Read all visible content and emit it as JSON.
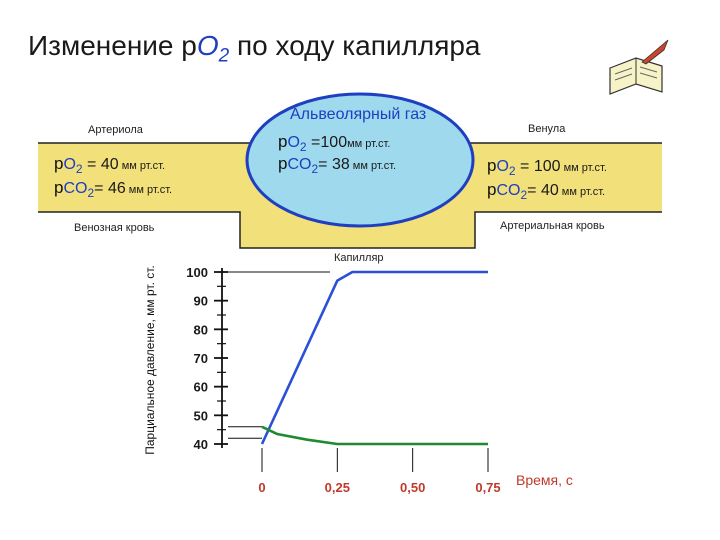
{
  "title": {
    "prefix": "Изменение р",
    "o": "O",
    "sub": "2",
    "suffix": " по ходу капилляра"
  },
  "labels": {
    "arteriole": "Артериола",
    "venule": "Венула",
    "venous_blood": "Венозная кровь",
    "arterial_blood": "Артериальная кровь",
    "alveolar_gas": "Альвеолярный газ",
    "capillary": "Капилляр",
    "y_axis": "Парциальное давление, мм рт. ст.",
    "time": "Время, с"
  },
  "left_values": {
    "po2_prefix": "p",
    "o": "O",
    "o_sub": "2",
    "po2_eq": " = ",
    "po2_value": "40",
    "po2_unit": " мм рт.ст.",
    "pco2_prefix": "p",
    "co": "CO",
    "co_sub": "2",
    "pco2_eq": "= ",
    "pco2_value": "46",
    "pco2_unit": " мм рт.ст."
  },
  "alveolar_values": {
    "po2_prefix": "p",
    "o": "O",
    "o_sub": "2",
    "po2_eq": " =",
    "po2_value": "100",
    "po2_unit": "мм рт.ст.",
    "pco2_prefix": "p",
    "co": "CO",
    "co_sub": "2",
    "pco2_eq": "= ",
    "pco2_value": "38",
    "pco2_unit": " мм рт.ст."
  },
  "right_values": {
    "po2_prefix": "p",
    "o": "O",
    "o_sub": "2",
    "po2_eq": " = ",
    "po2_value": "100",
    "po2_unit": " мм рт.ст.",
    "pco2_prefix": "p",
    "co": "CO",
    "co_sub": "2",
    "pco2_eq": "= ",
    "pco2_value": "40",
    "pco2_unit": " мм рт.ст."
  },
  "colors": {
    "vessel": "#f2e07a",
    "alveolus_fill": "#9fd9ee",
    "alveolus_stroke": "#1e3fbf",
    "o2_line": "#2a4fd8",
    "co2_line": "#1f8a2e",
    "time_ticks": "#c0392b"
  },
  "icon": "open-book-with-quill-icon",
  "chart_data": {
    "type": "line",
    "x_ticks": [
      "0",
      "0,25",
      "0,50",
      "0,75"
    ],
    "y_ticks": [
      "40",
      "50",
      "60",
      "70",
      "80",
      "90",
      "100"
    ],
    "xlim": [
      0,
      0.75
    ],
    "ylim": [
      40,
      100
    ],
    "series": [
      {
        "x": [
          0,
          0.25,
          0.3,
          0.75
        ],
        "y": [
          40,
          97,
          100,
          100
        ]
      },
      {
        "x": [
          0,
          0.05,
          0.15,
          0.25,
          0.75
        ],
        "y": [
          46,
          43.5,
          41.5,
          40,
          40
        ]
      }
    ]
  }
}
